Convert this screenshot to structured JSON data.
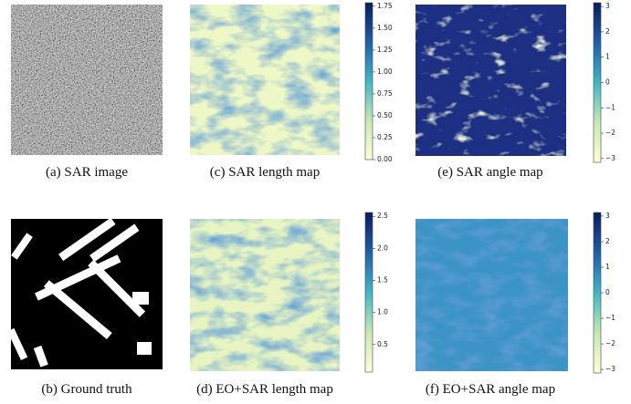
{
  "panels": [
    {
      "caption": "(a) SAR image"
    },
    {
      "caption": "(c) SAR length  map",
      "colorbar": {
        "lim": [
          0,
          1.79
        ],
        "ticks": [
          {
            "value": 0,
            "label": "0.00"
          },
          {
            "value": 0.25,
            "label": "0.25"
          },
          {
            "value": 0.5,
            "label": "0.50"
          },
          {
            "value": 0.75,
            "label": "0.75"
          },
          {
            "value": 1,
            "label": "1.00"
          },
          {
            "value": 1.25,
            "label": "1.25"
          },
          {
            "value": 1.5,
            "label": "1.50"
          },
          {
            "value": 1.75,
            "label": "1.75"
          }
        ]
      }
    },
    {
      "caption": "(e) SAR angle  map",
      "colorbar": {
        "lim": [
          -3.15,
          3.15
        ],
        "ticks": [
          {
            "value": -3,
            "label": "−3"
          },
          {
            "value": -2,
            "label": "−2"
          },
          {
            "value": -1,
            "label": "−1"
          },
          0,
          1,
          2,
          3
        ]
      }
    },
    {
      "caption": "(b) Ground truth"
    },
    {
      "caption": "(d) EO+SAR length  map",
      "colorbar": {
        "lim": [
          0.07,
          2.56
        ],
        "ticks": [
          {
            "value": 0.5,
            "label": "0.5"
          },
          {
            "value": 1,
            "label": "1.0"
          },
          {
            "value": 1.5,
            "label": "1.5"
          },
          {
            "value": 2,
            "label": "2.0"
          },
          {
            "value": 2.5,
            "label": "2.5"
          }
        ]
      }
    },
    {
      "caption": "(f) EO+SAR angle  map",
      "colorbar": {
        "lim": [
          -3.14,
          3.14
        ],
        "ticks": [
          {
            "value": -3,
            "label": "−3"
          },
          {
            "value": -2,
            "label": "−2"
          },
          {
            "value": -1,
            "label": "−1"
          },
          0,
          1,
          2,
          3
        ]
      }
    }
  ]
}
